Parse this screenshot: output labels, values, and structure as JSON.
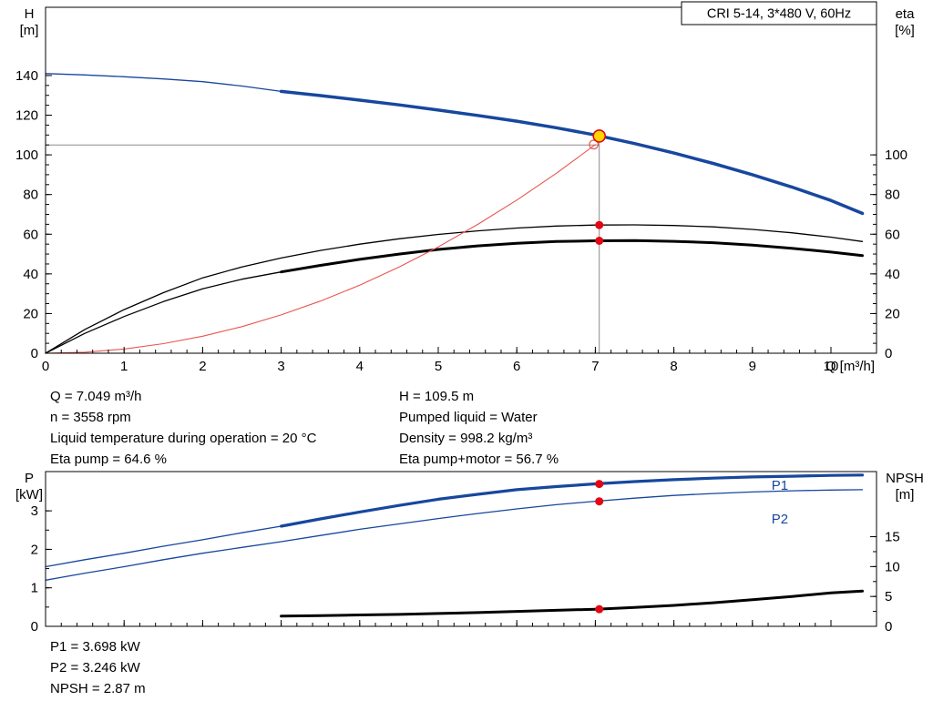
{
  "colors": {
    "blue": "#17479e",
    "red": "#e40613",
    "red_light": "#e8554f",
    "yellow": "#ffd500",
    "crosshair": "#8a8a8a",
    "axis": "#000000"
  },
  "readouts_top": {
    "col1": [
      "Q = 7.049 m³/h",
      "n = 3558 rpm",
      "Liquid temperature during operation = 20 °C",
      "Eta pump = 64.6 %"
    ],
    "col2": [
      "H = 109.5 m",
      "Pumped liquid = Water",
      "Density = 998.2 kg/m³",
      "Eta pump+motor = 56.7 %"
    ]
  },
  "readouts_bottom": [
    "P1 = 3.698 kW",
    "P2 = 3.246 kW",
    "NPSH = 2.87 m"
  ],
  "chart_data": [
    {
      "id": "qh",
      "type": "line",
      "title": "CRI 5-14, 3*480 V, 60Hz",
      "xlabel": "Q [m³/h]",
      "corner_left": [
        "H",
        "[m]"
      ],
      "corner_right": [
        "eta",
        "[%]"
      ],
      "xlim": [
        0,
        10.58
      ],
      "ylim_left": [
        0,
        174.4
      ],
      "ylim_right": [
        0,
        174.4
      ],
      "xticks": [
        0,
        1,
        2,
        3,
        4,
        5,
        6,
        7,
        8,
        9,
        10
      ],
      "xminor": 0.2,
      "yticks_left": [
        0,
        20,
        40,
        60,
        80,
        100,
        120,
        140
      ],
      "yminor_left": 5,
      "yticks_right": [
        0,
        20,
        40,
        60,
        80,
        100
      ],
      "yminor_right": 5,
      "grid": false,
      "duty_point": {
        "Q": 7.049,
        "H": 109.5,
        "eta_pump": 64.6,
        "eta_pump_motor": 56.7
      },
      "series": [
        {
          "name": "head-ext",
          "axis": "left",
          "color": "#17479e",
          "width": 1.3,
          "x": [
            0,
            0.5,
            1,
            1.5,
            2,
            2.5,
            3
          ],
          "y": [
            141,
            140.3,
            139.4,
            138.3,
            136.9,
            134.7,
            132
          ]
        },
        {
          "name": "head",
          "axis": "left",
          "color": "#17479e",
          "width": 3.5,
          "x": [
            3,
            3.5,
            4,
            4.5,
            5,
            5.5,
            6,
            6.5,
            7,
            7.5,
            8,
            8.5,
            9,
            9.5,
            10,
            10.4
          ],
          "y": [
            132,
            129.9,
            127.6,
            125.2,
            122.6,
            119.9,
            117,
            113.7,
            110,
            105.7,
            100.9,
            95.7,
            90,
            83.8,
            77,
            70.5
          ]
        },
        {
          "name": "eta-pump",
          "axis": "left",
          "color": "#000000",
          "width": 1.3,
          "x": [
            0,
            0.5,
            1,
            1.5,
            2,
            2.5,
            3,
            3.5,
            4,
            4.5,
            5,
            5.5,
            6,
            6.5,
            7,
            7.5,
            8,
            8.5,
            9,
            9.5,
            10,
            10.4
          ],
          "y": [
            0,
            12,
            22,
            30.5,
            38,
            43.5,
            48,
            51.8,
            55,
            57.7,
            59.9,
            61.7,
            63.1,
            64.1,
            64.6,
            64.7,
            64.4,
            63.7,
            62.4,
            60.7,
            58.5,
            56.3
          ]
        },
        {
          "name": "eta-total-ext",
          "axis": "left",
          "color": "#000000",
          "width": 1.3,
          "x": [
            0,
            0.5,
            1,
            1.5,
            2,
            2.5,
            3
          ],
          "y": [
            0,
            10,
            18.5,
            26,
            32.5,
            37.3,
            41
          ]
        },
        {
          "name": "eta-total",
          "axis": "left",
          "color": "#000000",
          "width": 3,
          "x": [
            3,
            3.5,
            4,
            4.5,
            5,
            5.5,
            6,
            6.5,
            7,
            7.5,
            8,
            8.5,
            9,
            9.5,
            10,
            10.4
          ],
          "y": [
            41,
            44.3,
            47.3,
            50,
            52.3,
            54.1,
            55.4,
            56.3,
            56.7,
            56.8,
            56.4,
            55.7,
            54.5,
            52.9,
            51,
            49.2
          ]
        },
        {
          "name": "system-curve",
          "axis": "left",
          "color": "#e8554f",
          "width": 1.1,
          "x": [
            0,
            0.5,
            1,
            1.5,
            2,
            2.5,
            3,
            3.5,
            4,
            4.5,
            5,
            5.5,
            6,
            6.5,
            7
          ],
          "y": [
            0,
            0.5,
            2.1,
            4.8,
            8.6,
            13.4,
            19.3,
            26.3,
            34.3,
            43.4,
            53.6,
            64.9,
            77.2,
            90.6,
            105.2
          ]
        }
      ],
      "guides": [
        {
          "type": "h",
          "y": 105,
          "x0": 0,
          "x1": 7.05
        },
        {
          "type": "v",
          "x": 7.05,
          "y0": 0,
          "y1": 109.5
        }
      ],
      "markers": [
        {
          "type": "open",
          "x": 6.98,
          "y": 105.2
        },
        {
          "type": "dot",
          "x": 7.05,
          "y": 64.6
        },
        {
          "type": "dot",
          "x": 7.05,
          "y": 56.7
        },
        {
          "type": "target",
          "x": 7.05,
          "y": 109.5
        }
      ]
    },
    {
      "id": "power_npsh",
      "type": "line",
      "title": "",
      "xlabel": "",
      "corner_left": [
        "P",
        "[kW]"
      ],
      "corner_right": [
        "NPSH",
        "[m]"
      ],
      "xlim": [
        0,
        10.58
      ],
      "ylim_left": [
        0,
        4.02
      ],
      "ylim_right": [
        0,
        25.9
      ],
      "xticks": [
        0,
        1,
        2,
        3,
        4,
        5,
        6,
        7,
        8,
        9,
        10
      ],
      "x_tick_labels": false,
      "xminor": 0.2,
      "yticks_left": [
        0,
        1,
        2,
        3
      ],
      "yminor_left": 0.5,
      "yticks_right": [
        0,
        5,
        10,
        15
      ],
      "yminor_right": 2.5,
      "grid": false,
      "duty_point": {
        "Q": 7.049,
        "P1_kW": 3.698,
        "P2_kW": 3.246,
        "NPSH_m": 2.87
      },
      "series": [
        {
          "name": "p1-ext",
          "axis": "left",
          "color": "#17479e",
          "width": 1.3,
          "x": [
            0,
            0.5,
            1,
            1.5,
            2,
            2.5,
            3
          ],
          "y": [
            1.55,
            1.73,
            1.9,
            2.08,
            2.25,
            2.43,
            2.6
          ]
        },
        {
          "name": "p1",
          "axis": "left",
          "color": "#17479e",
          "width": 3.2,
          "x": [
            3,
            3.5,
            4,
            4.5,
            5,
            5.5,
            6,
            6.5,
            7,
            7.5,
            8,
            8.5,
            9,
            9.5,
            10,
            10.4
          ],
          "y": [
            2.6,
            2.79,
            2.97,
            3.14,
            3.3,
            3.43,
            3.55,
            3.63,
            3.7,
            3.76,
            3.81,
            3.85,
            3.88,
            3.9,
            3.92,
            3.93
          ]
        },
        {
          "name": "p2",
          "axis": "left",
          "color": "#17479e",
          "width": 1.3,
          "x": [
            0,
            0.5,
            1,
            1.5,
            2,
            2.5,
            3,
            3.5,
            4,
            4.5,
            5,
            5.5,
            6,
            6.5,
            7,
            7.5,
            8,
            8.5,
            9,
            9.5,
            10,
            10.4
          ],
          "y": [
            1.2,
            1.38,
            1.55,
            1.73,
            1.9,
            2.05,
            2.2,
            2.36,
            2.52,
            2.66,
            2.8,
            2.93,
            3.05,
            3.16,
            3.25,
            3.33,
            3.4,
            3.45,
            3.49,
            3.52,
            3.54,
            3.55
          ]
        },
        {
          "name": "npsh",
          "axis": "right",
          "color": "#000000",
          "width": 3,
          "x": [
            3,
            3.5,
            4,
            4.5,
            5,
            5.5,
            6,
            6.5,
            7,
            7.5,
            8,
            8.5,
            9,
            9.5,
            10,
            10.4
          ],
          "y": [
            1.7,
            1.8,
            1.9,
            2.0,
            2.15,
            2.3,
            2.5,
            2.68,
            2.87,
            3.15,
            3.5,
            3.95,
            4.45,
            5.0,
            5.6,
            5.9
          ]
        }
      ],
      "labels": [
        {
          "text": "P1",
          "x": 9.35,
          "y": 3.55
        },
        {
          "text": "P2",
          "x": 9.35,
          "y": 2.67
        }
      ],
      "markers": [
        {
          "type": "dot",
          "x": 7.05,
          "y": 3.698
        },
        {
          "type": "dot",
          "x": 7.05,
          "y": 3.246
        },
        {
          "type": "dot",
          "x": 7.05,
          "y": 2.87,
          "axis": "right"
        }
      ]
    }
  ]
}
